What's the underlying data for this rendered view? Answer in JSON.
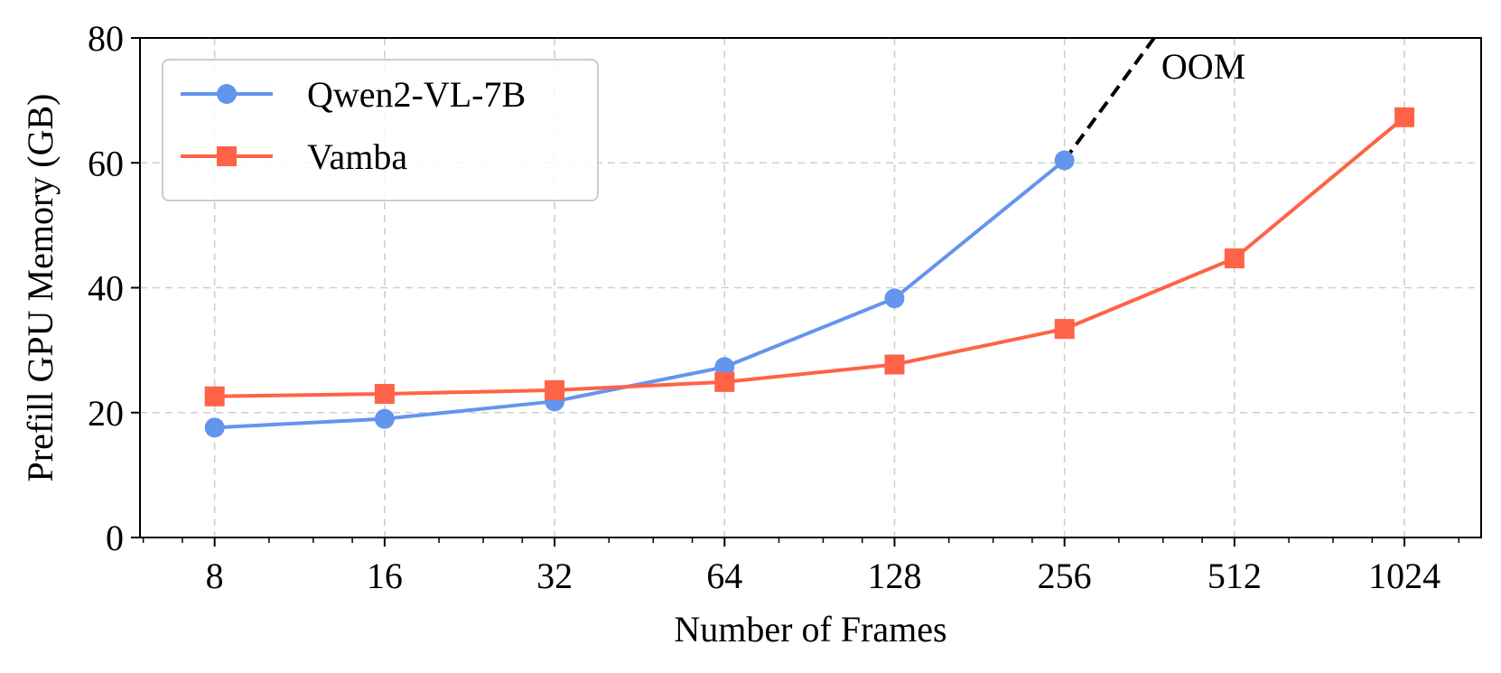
{
  "chart_data": {
    "type": "line",
    "xlabel": "Number of Frames",
    "ylabel": "Prefill GPU Memory (GB)",
    "x_scale": "log2",
    "x": [
      8,
      16,
      32,
      64,
      128,
      256,
      512,
      1024
    ],
    "x_tick_labels": [
      "8",
      "16",
      "32",
      "64",
      "128",
      "256",
      "512",
      "1024"
    ],
    "y_ticks": [
      0,
      20,
      40,
      60,
      80
    ],
    "ylim": [
      0,
      80
    ],
    "grid": true,
    "legend_position": "top-left",
    "series": [
      {
        "name": "Qwen2-VL-7B",
        "marker": "circle",
        "color": "#6495ED",
        "x": [
          8,
          16,
          32,
          64,
          128,
          256
        ],
        "values": [
          17.6,
          19.0,
          21.8,
          27.3,
          38.3,
          60.4
        ]
      },
      {
        "name": "Vamba",
        "marker": "square",
        "color": "#FF6347",
        "x": [
          8,
          16,
          32,
          64,
          128,
          256,
          512,
          1024
        ],
        "values": [
          22.6,
          23.0,
          23.6,
          24.9,
          27.7,
          33.4,
          44.7,
          67.3
        ]
      }
    ],
    "oom_extension": {
      "from": [
        256,
        60.4
      ],
      "to": [
        369,
        80
      ],
      "color": "#000000"
    },
    "annotations": [
      {
        "text": "OOM",
        "x": 380,
        "y": 75.5
      }
    ]
  }
}
